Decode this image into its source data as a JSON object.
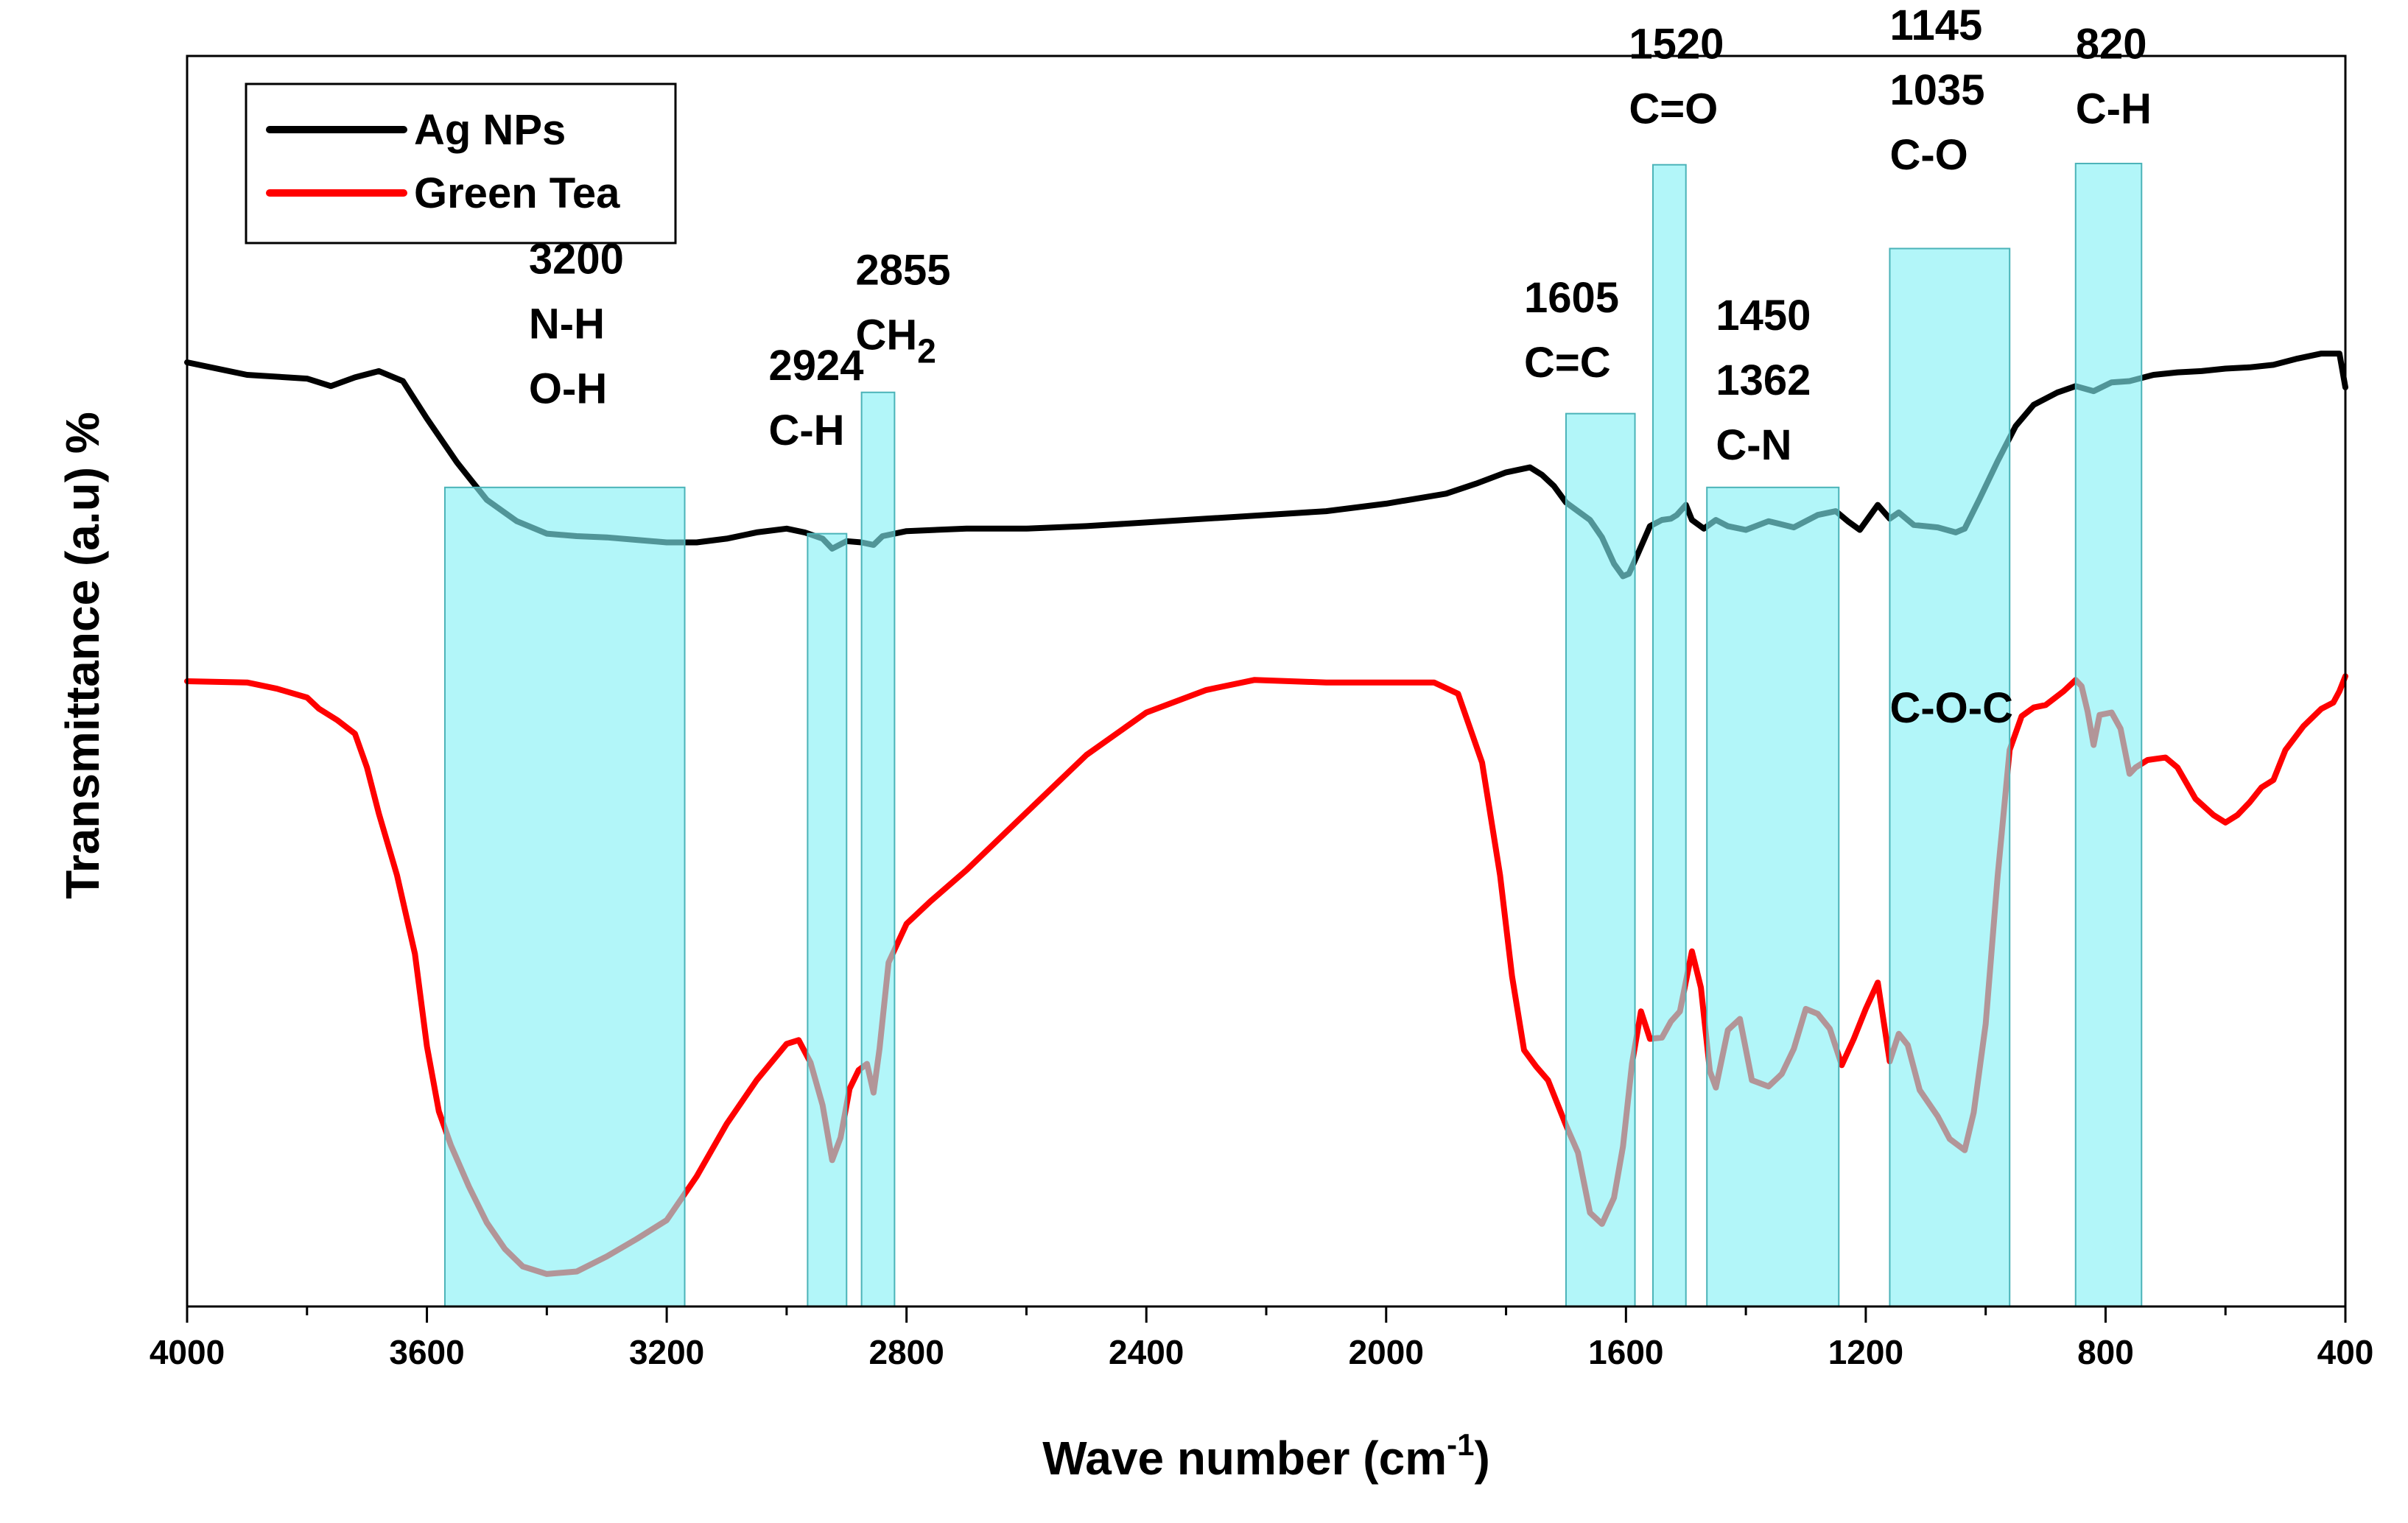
{
  "chart_data": {
    "type": "line",
    "title": "",
    "xlabel": "Wave number (cm",
    "xlabel_sup": "-1",
    "xlabel_close": ")",
    "ylabel": "Transmittance (a.u) %",
    "xlim": [
      4000,
      400
    ],
    "ylim": [
      0,
      100
    ],
    "x_ticks": [
      4000,
      3600,
      3200,
      2800,
      2400,
      2000,
      1600,
      1200,
      800,
      400
    ],
    "x_tick_labels": [
      "4000",
      "3600",
      "3200",
      "2800",
      "2400",
      "2000",
      "1600",
      "1200",
      "800",
      "400"
    ],
    "y_ticks_shown": false,
    "legend": [
      {
        "name": "Ag NPs",
        "color": "#000000"
      },
      {
        "name": "Green Tea",
        "color": "#ff0000"
      }
    ],
    "series": [
      {
        "name": "Ag NPs",
        "color": "#000000",
        "points": [
          [
            4000,
            75.5
          ],
          [
            3900,
            74.5
          ],
          [
            3800,
            74.2
          ],
          [
            3760,
            73.6
          ],
          [
            3720,
            74.3
          ],
          [
            3680,
            74.8
          ],
          [
            3640,
            74.0
          ],
          [
            3600,
            71.0
          ],
          [
            3550,
            67.5
          ],
          [
            3500,
            64.5
          ],
          [
            3450,
            62.8
          ],
          [
            3400,
            61.8
          ],
          [
            3350,
            61.6
          ],
          [
            3300,
            61.5
          ],
          [
            3250,
            61.3
          ],
          [
            3200,
            61.1
          ],
          [
            3150,
            61.1
          ],
          [
            3100,
            61.4
          ],
          [
            3050,
            61.9
          ],
          [
            3000,
            62.2
          ],
          [
            2970,
            61.9
          ],
          [
            2940,
            61.4
          ],
          [
            2924,
            60.6
          ],
          [
            2900,
            61.2
          ],
          [
            2875,
            61.1
          ],
          [
            2855,
            60.9
          ],
          [
            2840,
            61.6
          ],
          [
            2800,
            62.0
          ],
          [
            2700,
            62.2
          ],
          [
            2600,
            62.2
          ],
          [
            2500,
            62.4
          ],
          [
            2400,
            62.7
          ],
          [
            2300,
            63.0
          ],
          [
            2200,
            63.3
          ],
          [
            2100,
            63.6
          ],
          [
            2000,
            64.2
          ],
          [
            1900,
            65.0
          ],
          [
            1850,
            65.8
          ],
          [
            1800,
            66.7
          ],
          [
            1760,
            67.1
          ],
          [
            1740,
            66.5
          ],
          [
            1720,
            65.6
          ],
          [
            1700,
            64.3
          ],
          [
            1680,
            63.6
          ],
          [
            1660,
            62.9
          ],
          [
            1640,
            61.5
          ],
          [
            1620,
            59.4
          ],
          [
            1605,
            58.4
          ],
          [
            1595,
            58.6
          ],
          [
            1580,
            60.2
          ],
          [
            1560,
            62.4
          ],
          [
            1540,
            62.9
          ],
          [
            1525,
            63.0
          ],
          [
            1515,
            63.3
          ],
          [
            1500,
            64.1
          ],
          [
            1490,
            62.9
          ],
          [
            1470,
            62.2
          ],
          [
            1450,
            62.9
          ],
          [
            1430,
            62.4
          ],
          [
            1400,
            62.1
          ],
          [
            1362,
            62.8
          ],
          [
            1320,
            62.3
          ],
          [
            1280,
            63.3
          ],
          [
            1250,
            63.6
          ],
          [
            1230,
            62.8
          ],
          [
            1210,
            62.1
          ],
          [
            1180,
            64.1
          ],
          [
            1160,
            63.0
          ],
          [
            1145,
            63.5
          ],
          [
            1120,
            62.5
          ],
          [
            1080,
            62.3
          ],
          [
            1050,
            61.9
          ],
          [
            1035,
            62.2
          ],
          [
            1010,
            64.6
          ],
          [
            980,
            67.6
          ],
          [
            950,
            70.4
          ],
          [
            920,
            72.1
          ],
          [
            880,
            73.1
          ],
          [
            850,
            73.6
          ],
          [
            820,
            73.2
          ],
          [
            790,
            73.9
          ],
          [
            760,
            74.0
          ],
          [
            720,
            74.5
          ],
          [
            680,
            74.7
          ],
          [
            640,
            74.8
          ],
          [
            600,
            75.0
          ],
          [
            560,
            75.1
          ],
          [
            520,
            75.3
          ],
          [
            480,
            75.8
          ],
          [
            440,
            76.2
          ],
          [
            410,
            76.2
          ],
          [
            400,
            73.5
          ]
        ]
      },
      {
        "name": "Green Tea",
        "color": "#ff0000",
        "points": [
          [
            4000,
            50.0
          ],
          [
            3900,
            49.9
          ],
          [
            3850,
            49.4
          ],
          [
            3800,
            48.7
          ],
          [
            3780,
            47.8
          ],
          [
            3750,
            46.9
          ],
          [
            3720,
            45.8
          ],
          [
            3700,
            43.1
          ],
          [
            3680,
            39.4
          ],
          [
            3650,
            34.5
          ],
          [
            3620,
            28.2
          ],
          [
            3600,
            20.8
          ],
          [
            3580,
            15.6
          ],
          [
            3560,
            12.9
          ],
          [
            3530,
            9.6
          ],
          [
            3500,
            6.7
          ],
          [
            3470,
            4.6
          ],
          [
            3440,
            3.2
          ],
          [
            3400,
            2.6
          ],
          [
            3350,
            2.8
          ],
          [
            3300,
            4.0
          ],
          [
            3250,
            5.4
          ],
          [
            3200,
            6.9
          ],
          [
            3150,
            10.4
          ],
          [
            3100,
            14.6
          ],
          [
            3050,
            18.1
          ],
          [
            3000,
            21.0
          ],
          [
            2980,
            21.3
          ],
          [
            2960,
            19.5
          ],
          [
            2940,
            16.1
          ],
          [
            2924,
            11.7
          ],
          [
            2910,
            13.5
          ],
          [
            2895,
            17.4
          ],
          [
            2880,
            18.9
          ],
          [
            2866,
            19.4
          ],
          [
            2855,
            17.1
          ],
          [
            2845,
            20.6
          ],
          [
            2830,
            27.5
          ],
          [
            2800,
            30.6
          ],
          [
            2760,
            32.4
          ],
          [
            2700,
            34.9
          ],
          [
            2600,
            39.5
          ],
          [
            2500,
            44.1
          ],
          [
            2400,
            47.5
          ],
          [
            2300,
            49.3
          ],
          [
            2220,
            50.1
          ],
          [
            2100,
            49.9
          ],
          [
            2000,
            49.9
          ],
          [
            1920,
            49.9
          ],
          [
            1880,
            49.0
          ],
          [
            1840,
            43.5
          ],
          [
            1810,
            34.5
          ],
          [
            1790,
            26.4
          ],
          [
            1770,
            20.5
          ],
          [
            1750,
            19.2
          ],
          [
            1730,
            18.1
          ],
          [
            1700,
            14.5
          ],
          [
            1680,
            12.3
          ],
          [
            1660,
            7.5
          ],
          [
            1640,
            6.6
          ],
          [
            1620,
            8.7
          ],
          [
            1605,
            12.8
          ],
          [
            1590,
            19.4
          ],
          [
            1575,
            23.6
          ],
          [
            1560,
            21.4
          ],
          [
            1540,
            21.5
          ],
          [
            1525,
            22.8
          ],
          [
            1510,
            23.6
          ],
          [
            1490,
            28.4
          ],
          [
            1475,
            25.5
          ],
          [
            1460,
            18.8
          ],
          [
            1450,
            17.5
          ],
          [
            1430,
            22.1
          ],
          [
            1410,
            23.0
          ],
          [
            1390,
            18.1
          ],
          [
            1362,
            17.6
          ],
          [
            1340,
            18.6
          ],
          [
            1320,
            20.6
          ],
          [
            1300,
            23.8
          ],
          [
            1280,
            23.4
          ],
          [
            1260,
            22.2
          ],
          [
            1240,
            19.3
          ],
          [
            1220,
            21.4
          ],
          [
            1200,
            23.8
          ],
          [
            1180,
            25.9
          ],
          [
            1160,
            19.6
          ],
          [
            1145,
            21.8
          ],
          [
            1130,
            20.9
          ],
          [
            1110,
            17.3
          ],
          [
            1080,
            15.2
          ],
          [
            1060,
            13.4
          ],
          [
            1035,
            12.5
          ],
          [
            1020,
            15.5
          ],
          [
            1000,
            22.6
          ],
          [
            980,
            34.4
          ],
          [
            960,
            44.5
          ],
          [
            940,
            47.2
          ],
          [
            920,
            47.9
          ],
          [
            900,
            48.1
          ],
          [
            870,
            49.2
          ],
          [
            850,
            50.1
          ],
          [
            840,
            49.6
          ],
          [
            830,
            47.6
          ],
          [
            820,
            44.9
          ],
          [
            810,
            47.3
          ],
          [
            790,
            47.5
          ],
          [
            775,
            46.2
          ],
          [
            760,
            42.6
          ],
          [
            750,
            43.1
          ],
          [
            730,
            43.7
          ],
          [
            700,
            43.9
          ],
          [
            680,
            43.1
          ],
          [
            650,
            40.6
          ],
          [
            620,
            39.3
          ],
          [
            600,
            38.7
          ],
          [
            580,
            39.3
          ],
          [
            560,
            40.3
          ],
          [
            540,
            41.5
          ],
          [
            520,
            42.1
          ],
          [
            500,
            44.5
          ],
          [
            470,
            46.4
          ],
          [
            440,
            47.8
          ],
          [
            420,
            48.3
          ],
          [
            410,
            49.2
          ],
          [
            400,
            50.4
          ]
        ]
      }
    ],
    "highlight_bands": [
      {
        "x_from": 3570,
        "x_to": 3170,
        "y_top": 65.5
      },
      {
        "x_from": 2965,
        "x_to": 2900,
        "y_top": 61.8
      },
      {
        "x_from": 2875,
        "x_to": 2820,
        "y_top": 73.1
      },
      {
        "x_from": 1700,
        "x_to": 1585,
        "y_top": 71.4
      },
      {
        "x_from": 1555,
        "x_to": 1500,
        "y_top": 91.3
      },
      {
        "x_from": 1465,
        "x_to": 1245,
        "y_top": 65.5
      },
      {
        "x_from": 1160,
        "x_to": 960,
        "y_top": 84.6
      },
      {
        "x_from": 850,
        "x_to": 740,
        "y_top": 91.4
      }
    ],
    "annotations": [
      {
        "lines": [
          "3200",
          "N-H",
          "O-H"
        ],
        "x": 3430,
        "y": 82.6
      },
      {
        "lines": [
          "2924",
          "C-H"
        ],
        "x": 3030,
        "y": 74.1
      },
      {
        "lines": [
          "2855",
          "CH"
        ],
        "sub": "2",
        "x": 2885,
        "y": 81.7
      },
      {
        "lines": [
          "1605",
          "C=C"
        ],
        "x": 1770,
        "y": 79.5
      },
      {
        "lines": [
          "1520",
          "C=O"
        ],
        "x": 1595,
        "y": 99.8
      },
      {
        "lines": [
          "1450",
          "1362",
          "C-N"
        ],
        "x": 1450,
        "y": 78.1
      },
      {
        "lines": [
          "1145",
          "1035",
          "C-O"
        ],
        "x": 1160,
        "y": 101.3
      },
      {
        "lines": [
          "820",
          "C-H"
        ],
        "x": 850,
        "y": 99.8
      },
      {
        "lines": [
          "C-O-C"
        ],
        "x": 1160,
        "y": 46.7
      }
    ]
  }
}
